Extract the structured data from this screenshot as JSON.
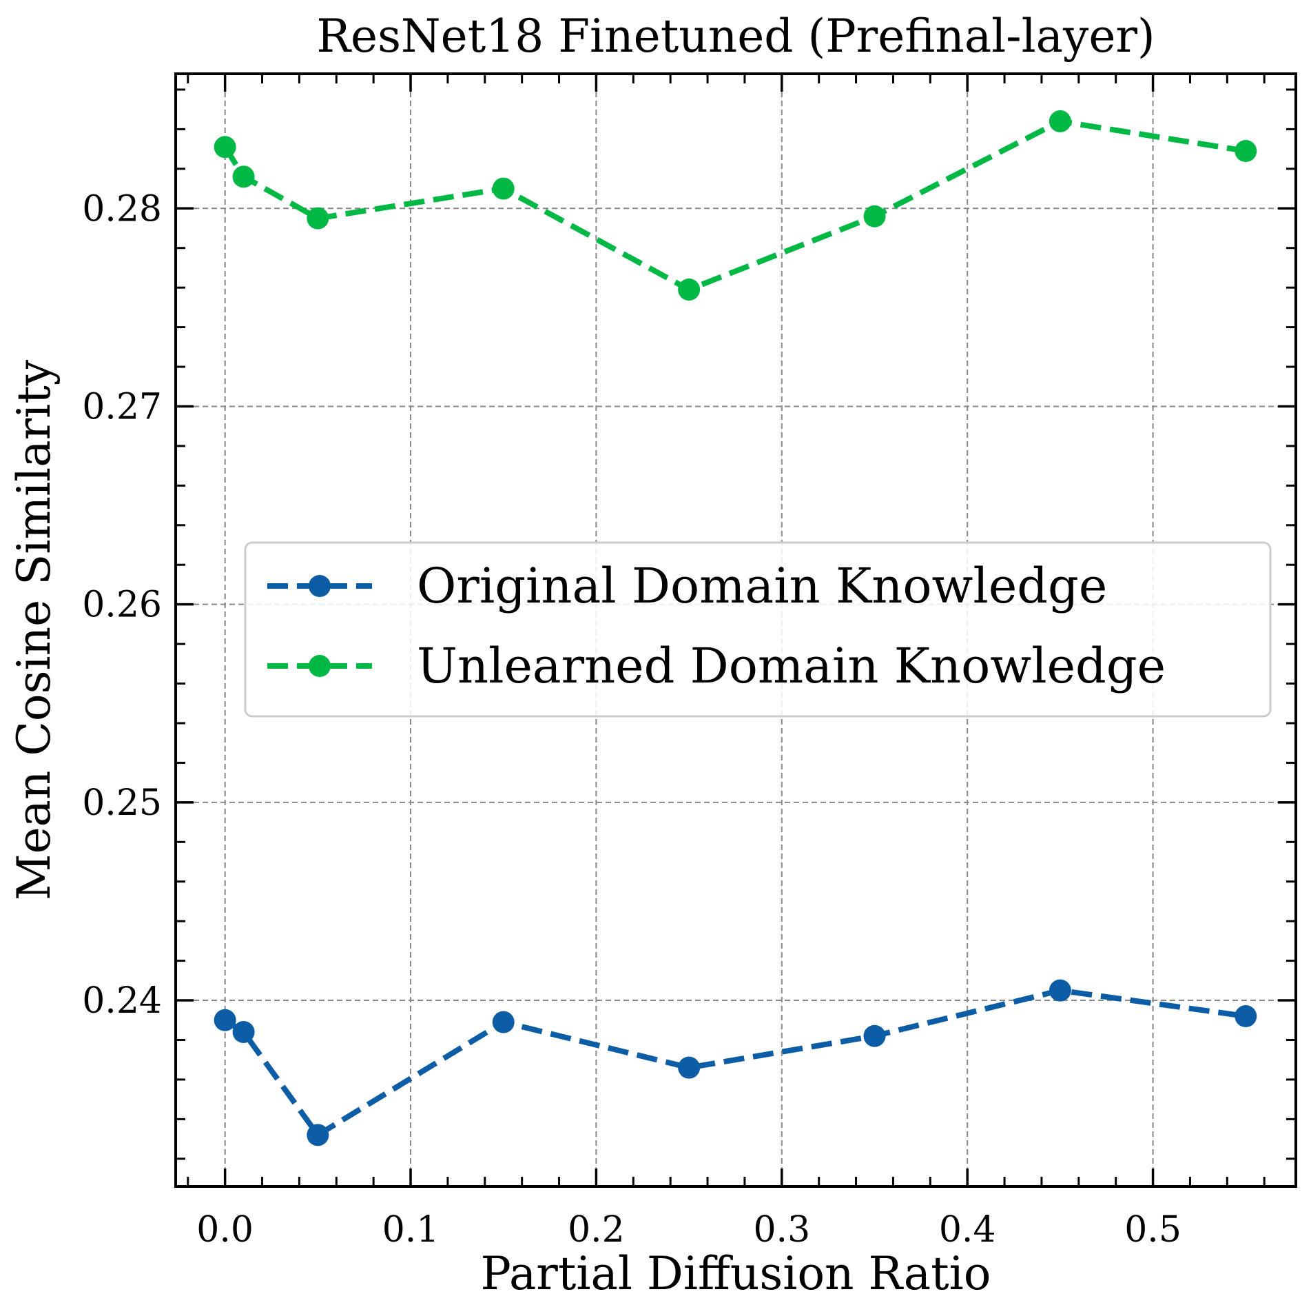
{
  "chart_data": {
    "type": "line",
    "title": "ResNet18 Finetuned (Prefinal-layer)",
    "xlabel": "Partial Diffusion Ratio",
    "ylabel": "Mean Cosine Similarity",
    "xlim": [
      -0.0266,
      0.577
    ],
    "ylim": [
      0.2306,
      0.2868
    ],
    "xticks": [
      0.0,
      0.1,
      0.2,
      0.3,
      0.4,
      0.5
    ],
    "xtick_labels": [
      "0.0",
      "0.1",
      "0.2",
      "0.3",
      "0.4",
      "0.5"
    ],
    "yticks": [
      0.24,
      0.25,
      0.26,
      0.27,
      0.28
    ],
    "ytick_labels": [
      "0.24",
      "0.25",
      "0.26",
      "0.27",
      "0.28"
    ],
    "grid": true,
    "legend_position": "center",
    "x": [
      0.0,
      0.01,
      0.05,
      0.15,
      0.25,
      0.35,
      0.45,
      0.55
    ],
    "series": [
      {
        "name": "Original Domain Knowledge",
        "color": "#0C5DA5",
        "values": [
          0.239,
          0.2384,
          0.2332,
          0.2389,
          0.2366,
          0.2382,
          0.2405,
          0.2392
        ]
      },
      {
        "name": "Unlearned Domain Knowledge",
        "color": "#00B945",
        "values": [
          0.2831,
          0.2816,
          0.2795,
          0.281,
          0.2759,
          0.2796,
          0.2844,
          0.2829
        ]
      }
    ]
  }
}
